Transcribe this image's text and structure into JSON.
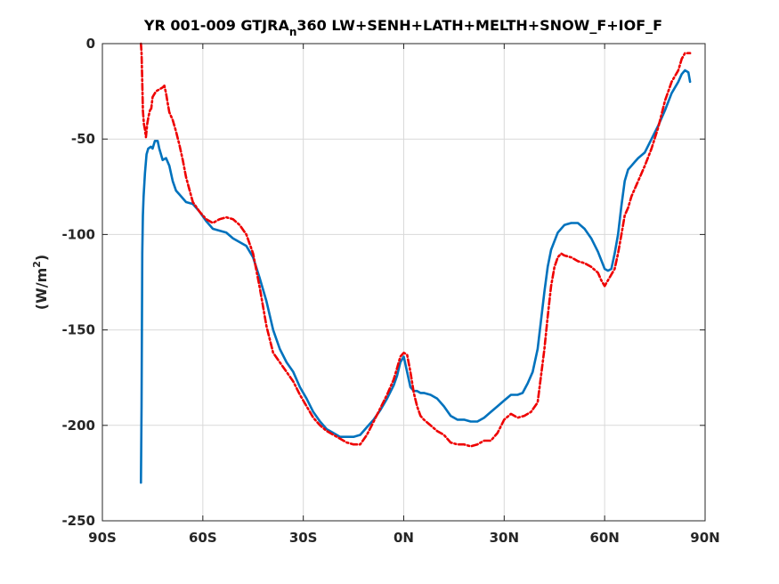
{
  "chart_data": {
    "type": "line",
    "title_main": "YR 001-009 GTJRA",
    "title_sub": "n",
    "title_rest": "360 LW+SENH+LATH+MELTH+SNOW_F+IOF_F",
    "ylabel_main": "(W/m",
    "ylabel_sup": "2",
    "ylabel_end": ")",
    "xlim": [
      -90,
      90
    ],
    "ylim": [
      -250,
      0
    ],
    "grid": true,
    "x_ticks": [
      -90,
      -60,
      -30,
      0,
      30,
      60,
      90
    ],
    "x_tick_labels": [
      "90S",
      "60S",
      "30S",
      "0N",
      "30N",
      "60N",
      "90N"
    ],
    "y_ticks": [
      0,
      -50,
      -100,
      -150,
      -200,
      -250
    ],
    "y_tick_labels": [
      "0",
      "-50",
      "-100",
      "-150",
      "-200",
      "-250"
    ],
    "series": [
      {
        "color": "#0072bd",
        "style": "solid",
        "x": [
          -78.5,
          -78.3,
          -78.1,
          -77.9,
          -77.7,
          -77.3,
          -76.8,
          -76.3,
          -75.5,
          -75.0,
          -74.3,
          -73.5,
          -73.0,
          -72.0,
          -71.0,
          -70.0,
          -69.0,
          -68.0,
          -67.0,
          -65.0,
          -63.0,
          -61.0,
          -59.0,
          -57.0,
          -55.0,
          -53.0,
          -51.0,
          -49.0,
          -47.0,
          -45.0,
          -43.0,
          -41.0,
          -39.0,
          -37.0,
          -35.0,
          -33.0,
          -31.0,
          -29.0,
          -27.0,
          -25.0,
          -23.0,
          -21.0,
          -19.0,
          -17.0,
          -15.0,
          -13.0,
          -11.0,
          -9.0,
          -7.0,
          -5.0,
          -3.0,
          -2.0,
          -1.0,
          0.0,
          1.0,
          2.0,
          3.0,
          4.0,
          5.0,
          6.0,
          8.0,
          10.0,
          12.0,
          14.0,
          16.0,
          18.0,
          20.0,
          22.0,
          24.0,
          26.0,
          28.0,
          30.0,
          32.0,
          34.0,
          35.5,
          37.0,
          38.5,
          40.0,
          41.0,
          42.0,
          43.0,
          44.0,
          46.0,
          48.0,
          50.0,
          52.0,
          54.0,
          56.0,
          58.0,
          60.0,
          61.0,
          62.0,
          63.0,
          64.0,
          65.0,
          66.0,
          67.0,
          68.0,
          69.0,
          70.0,
          72.0,
          74.0,
          76.0,
          78.0,
          80.0,
          82.0,
          83.0,
          84.0,
          85.0,
          85.5
        ],
        "y": [
          -230,
          -190,
          -110,
          -90,
          -80,
          -68,
          -58,
          -55,
          -54,
          -55,
          -51,
          -51,
          -55,
          -61,
          -60,
          -64,
          -72,
          -77,
          -79,
          -83,
          -84,
          -88,
          -93,
          -97,
          -98,
          -99,
          -102,
          -104,
          -106,
          -112,
          -123,
          -135,
          -150,
          -160,
          -167,
          -172,
          -180,
          -186,
          -193,
          -198,
          -202,
          -204,
          -206,
          -206,
          -206,
          -205,
          -201,
          -197,
          -192,
          -186,
          -179,
          -174,
          -167,
          -164,
          -172,
          -180,
          -182,
          -182,
          -183,
          -183,
          -184,
          -186,
          -190,
          -195,
          -197,
          -197,
          -198,
          -198,
          -196,
          -193,
          -190,
          -187,
          -184,
          -184,
          -183,
          -178,
          -172,
          -160,
          -145,
          -130,
          -117,
          -108,
          -99,
          -95,
          -94,
          -94,
          -97,
          -102,
          -109,
          -118,
          -119,
          -118,
          -110,
          -100,
          -85,
          -72,
          -66,
          -64,
          -62,
          -60,
          -57,
          -50,
          -43,
          -35,
          -26,
          -20,
          -16,
          -14,
          -15,
          -20
        ]
      },
      {
        "color": "#ee0000",
        "style": "dashdot",
        "x": [
          -78.5,
          -78.3,
          -78.1,
          -77.9,
          -77.6,
          -77.3,
          -77.0,
          -76.6,
          -76.2,
          -75.8,
          -75.4,
          -75.0,
          -74.0,
          -73.0,
          -72.0,
          -71.5,
          -71.0,
          -70.5,
          -70.0,
          -69.0,
          -68.0,
          -67.0,
          -66.0,
          -65.0,
          -63.0,
          -61.0,
          -59.0,
          -57.0,
          -55.0,
          -53.0,
          -51.0,
          -49.0,
          -47.0,
          -45.0,
          -43.0,
          -41.0,
          -39.0,
          -37.0,
          -35.0,
          -33.0,
          -31.0,
          -29.0,
          -27.0,
          -25.0,
          -23.0,
          -21.0,
          -19.0,
          -17.0,
          -15.0,
          -13.0,
          -11.0,
          -9.0,
          -7.0,
          -5.0,
          -3.0,
          -2.0,
          -1.0,
          0.0,
          1.0,
          2.0,
          3.0,
          4.0,
          5.0,
          6.0,
          8.0,
          10.0,
          12.0,
          14.0,
          16.0,
          18.0,
          20.0,
          22.0,
          24.0,
          26.0,
          28.0,
          30.0,
          32.0,
          34.0,
          36.0,
          38.0,
          40.0,
          41.0,
          42.0,
          43.0,
          44.0,
          45.0,
          46.0,
          47.0,
          48.0,
          50.0,
          52.0,
          54.0,
          56.0,
          58.0,
          59.0,
          60.0,
          61.0,
          62.0,
          63.0,
          64.0,
          65.0,
          66.0,
          67.0,
          68.0,
          70.0,
          72.0,
          74.0,
          76.0,
          78.0,
          80.0,
          82.0,
          83.0,
          84.0,
          85.0,
          85.5
        ],
        "y": [
          0,
          -5,
          -20,
          -35,
          -42,
          -45,
          -49,
          -42,
          -38,
          -35,
          -34,
          -28,
          -25,
          -24,
          -23,
          -22,
          -26,
          -31,
          -36,
          -40,
          -46,
          -53,
          -61,
          -70,
          -83,
          -88,
          -92,
          -94,
          -92,
          -91,
          -92,
          -95,
          -100,
          -110,
          -128,
          -148,
          -162,
          -167,
          -172,
          -177,
          -184,
          -190,
          -196,
          -200,
          -203,
          -205,
          -207,
          -209,
          -210,
          -210,
          -205,
          -198,
          -191,
          -184,
          -176,
          -170,
          -164,
          -162,
          -163,
          -172,
          -183,
          -190,
          -195,
          -197,
          -200,
          -203,
          -205,
          -209,
          -210,
          -210,
          -211,
          -210,
          -208,
          -208,
          -204,
          -197,
          -194,
          -196,
          -195,
          -193,
          -188,
          -174,
          -160,
          -143,
          -127,
          -117,
          -112,
          -110,
          -111,
          -112,
          -114,
          -115,
          -117,
          -120,
          -124,
          -127,
          -124,
          -121,
          -118,
          -110,
          -100,
          -90,
          -86,
          -80,
          -72,
          -64,
          -55,
          -44,
          -30,
          -20,
          -14,
          -8,
          -5,
          -5,
          -5
        ]
      }
    ]
  }
}
